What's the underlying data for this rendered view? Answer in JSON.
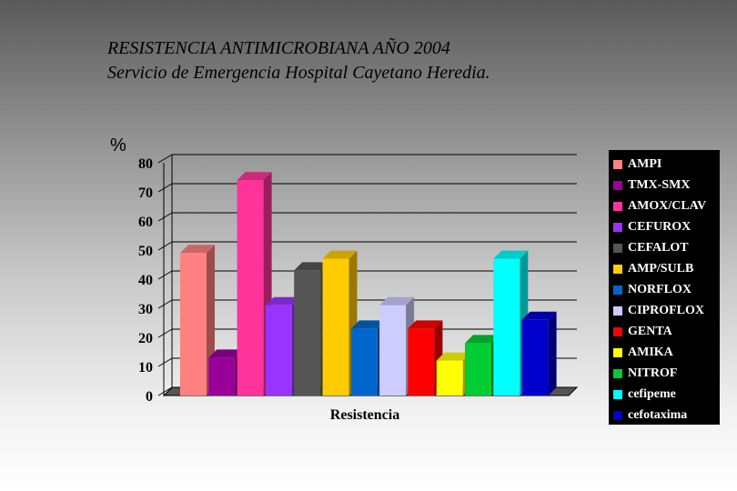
{
  "title": {
    "line1": "RESISTENCIA ANTIMICROBIANA AÑO 2004",
    "line2": "Servicio de Emergencia Hospital Cayetano Heredia."
  },
  "chart_data": {
    "type": "bar",
    "title": "RESISTENCIA ANTIMICROBIANA AÑO 2004",
    "subtitle": "Servicio de Emergencia Hospital Cayetano Heredia.",
    "ylabel": "%",
    "xlabel": "Resistencia",
    "ylim": [
      0,
      80
    ],
    "yticks": [
      0,
      10,
      20,
      30,
      40,
      50,
      60,
      70,
      80
    ],
    "grid": true,
    "legend_position": "right",
    "categories": [
      "Resistencia"
    ],
    "series": [
      {
        "name": "AMPI",
        "values": [
          49
        ],
        "color": "#ff8080"
      },
      {
        "name": "TMX-SMX",
        "values": [
          13
        ],
        "color": "#990099"
      },
      {
        "name": "AMOX/CLAV",
        "values": [
          74
        ],
        "color": "#ff3399"
      },
      {
        "name": "CEFUROX",
        "values": [
          31
        ],
        "color": "#9933ff"
      },
      {
        "name": "CEFALOT",
        "values": [
          43
        ],
        "color": "#555555"
      },
      {
        "name": "AMP/SULB",
        "values": [
          47
        ],
        "color": "#ffcc00"
      },
      {
        "name": "NORFLOX",
        "values": [
          23
        ],
        "color": "#0066cc"
      },
      {
        "name": "CIPROFLOX",
        "values": [
          31
        ],
        "color": "#ccccff"
      },
      {
        "name": "GENTA",
        "values": [
          23
        ],
        "color": "#ff0000"
      },
      {
        "name": "AMIKA",
        "values": [
          12
        ],
        "color": "#ffff00"
      },
      {
        "name": "NITROF",
        "values": [
          18
        ],
        "color": "#00cc33"
      },
      {
        "name": "cefipeme",
        "values": [
          47
        ],
        "color": "#00ffff"
      },
      {
        "name": "cefotaxima",
        "values": [
          26
        ],
        "color": "#0000cc"
      }
    ]
  }
}
